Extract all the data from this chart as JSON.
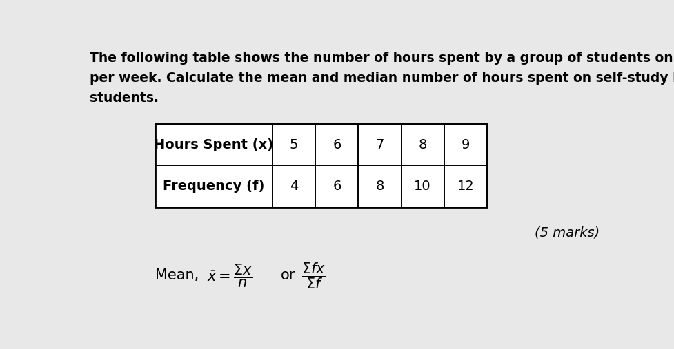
{
  "para_lines": [
    "The following table shows the number of hours spent by a group of students on self-study",
    "per week. Calculate the mean and median number of hours spent on self-study by the",
    "students."
  ],
  "table_header": [
    "Hours Spent (x)",
    "5",
    "6",
    "7",
    "8",
    "9"
  ],
  "table_row2": [
    "Frequency (f)",
    "4",
    "6",
    "8",
    "10",
    "12"
  ],
  "marks_text": "(5 marks)",
  "background_color": "#e8e8e8",
  "text_color": "#000000",
  "para_fontsize": 13.5,
  "table_fontsize": 14,
  "formula_fontsize": 15
}
